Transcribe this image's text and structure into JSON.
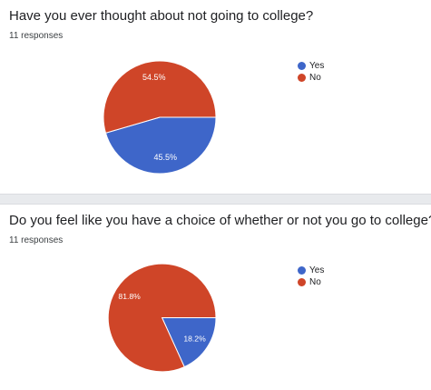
{
  "chart_data": [
    {
      "type": "pie",
      "title": "Have you ever thought about not going to college?",
      "subtitle": "11 responses",
      "categories": [
        "Yes",
        "No"
      ],
      "values": [
        45.5,
        54.5
      ],
      "labels": [
        "45.5%",
        "54.5%"
      ],
      "colors": [
        "#3e66c9",
        "#cf4528"
      ],
      "legend_position": "right"
    },
    {
      "type": "pie",
      "title": "Do you feel like you have a choice of whether or not you go to college?",
      "subtitle": "11 responses",
      "categories": [
        "Yes",
        "No"
      ],
      "values": [
        18.2,
        81.8
      ],
      "labels": [
        "18.2%",
        "81.8%"
      ],
      "colors": [
        "#3e66c9",
        "#cf4528"
      ],
      "legend_position": "right"
    }
  ]
}
